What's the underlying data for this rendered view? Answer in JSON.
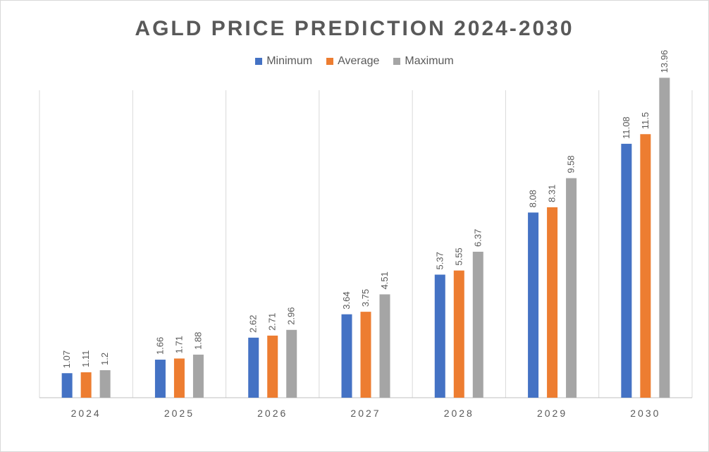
{
  "chart_data": {
    "type": "bar",
    "title": "AGLD PRICE PREDICTION 2024-2030",
    "categories": [
      "2024",
      "2025",
      "2026",
      "2027",
      "2028",
      "2029",
      "2030"
    ],
    "series": [
      {
        "name": "Minimum",
        "color": "#4472c4",
        "values": [
          1.07,
          1.66,
          2.62,
          3.64,
          5.37,
          8.08,
          11.08
        ],
        "labels": [
          "1.07",
          "1.66",
          "2.62",
          "3.64",
          "5.37",
          "8.08",
          "11.08"
        ]
      },
      {
        "name": "Average",
        "color": "#ed7d31",
        "values": [
          1.11,
          1.71,
          2.71,
          3.75,
          5.55,
          8.31,
          11.5
        ],
        "labels": [
          "1.11",
          "1.71",
          "2.71",
          "3.75",
          "5.55",
          "8.31",
          "11.5"
        ]
      },
      {
        "name": "Maximum",
        "color": "#a5a5a5",
        "values": [
          1.2,
          1.88,
          2.96,
          4.51,
          6.37,
          9.58,
          13.96
        ],
        "labels": [
          "1.2",
          "1.88",
          "2.96",
          "4.51",
          "6.37",
          "9.58",
          "13.96"
        ]
      }
    ],
    "ylim": [
      0,
      16
    ],
    "xlabel": "",
    "ylabel": "",
    "legend_position": "top-center",
    "grid": "vertical category separators"
  }
}
